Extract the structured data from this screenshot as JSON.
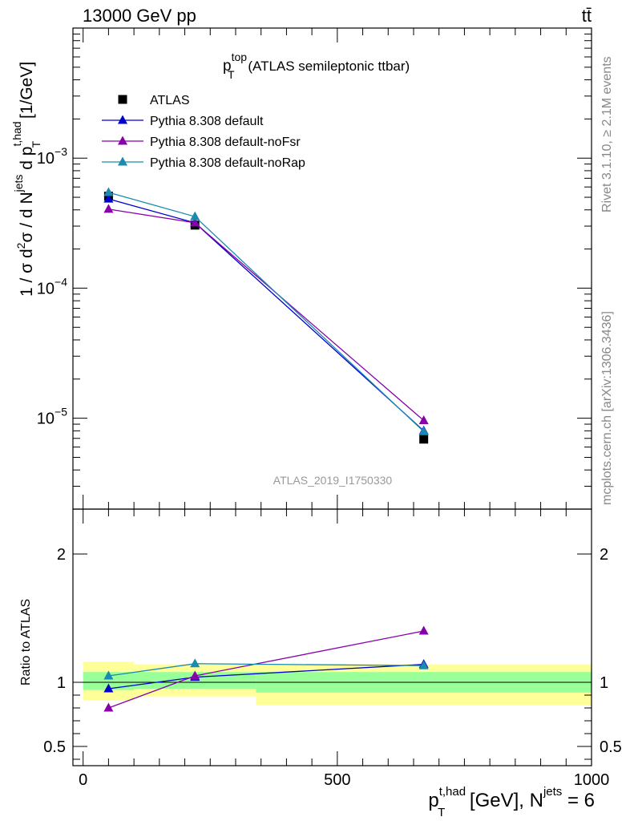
{
  "header": {
    "energy_label": "13000 GeV pp",
    "process_label": "tt̄"
  },
  "side_labels": {
    "rivet": "Rivet 3.1.10, ≥ 2.1M events",
    "mcplots": "mcplots.cern.ch [arXiv:1306.3436]"
  },
  "analysis_id": "ATLAS_2019_I1750330",
  "colors": {
    "data": "#000000",
    "default": "#0000cc",
    "noFsr": "#8800aa",
    "noRap": "#1a8ab0",
    "band_outer": "#ffff99",
    "band_inner": "#99ff99"
  },
  "chart_data": [
    {
      "type": "scatter",
      "panel": "main",
      "title_main": "p",
      "title_sup": "top",
      "title_sub": "T",
      "title_rest": " (ATLAS semileptonic ttbar)",
      "ylabel": "1 / σ d²σ / d N^jets d p_T^t,had [1/GeV]",
      "yscale": "log",
      "ylim": [
        2e-06,
        0.01
      ],
      "xlim": [
        -20,
        1000
      ],
      "y_ticks": [
        {
          "value": 1e-05,
          "base": "10",
          "exp": "−5"
        },
        {
          "value": 0.0001,
          "base": "10",
          "exp": "−4"
        },
        {
          "value": 0.001,
          "base": "10",
          "exp": "−3"
        }
      ],
      "legend_position": "top-left",
      "series": [
        {
          "name": "ATLAS",
          "key": "data",
          "marker": "square",
          "x": [
            50,
            220,
            670
          ],
          "y": [
            0.00051,
            0.000305,
            6.9e-06
          ]
        },
        {
          "name": "Pythia 8.308 default",
          "key": "default",
          "marker": "triangle",
          "x": [
            50,
            220,
            670
          ],
          "y": [
            0.000485,
            0.000318,
            8e-06
          ]
        },
        {
          "name": "Pythia 8.308 default-noFsr",
          "key": "noFsr",
          "marker": "triangle",
          "x": [
            50,
            220,
            670
          ],
          "y": [
            0.000405,
            0.000318,
            9.6e-06
          ]
        },
        {
          "name": "Pythia 8.308 default-noRap",
          "key": "noRap",
          "marker": "triangle",
          "x": [
            50,
            220,
            670
          ],
          "y": [
            0.000545,
            0.000355,
            7.9e-06
          ]
        }
      ]
    },
    {
      "type": "line",
      "panel": "ratio",
      "ylabel": "Ratio to ATLAS",
      "xlabel_main": "p",
      "xlabel_sup": "t,had",
      "xlabel_sub": "T",
      "xlabel_rest": " [GeV], N",
      "xlabel_sup2": "jets",
      "xlabel_tail": " = 6",
      "ylim": [
        0.35,
        2.35
      ],
      "xlim": [
        -20,
        1000
      ],
      "x_ticks": [
        0,
        500,
        1000
      ],
      "y_ticks": [
        0.5,
        1,
        2
      ],
      "bands": [
        {
          "x0": 0,
          "x1": 100,
          "outer": [
            0.86,
            1.16
          ],
          "inner": [
            0.94,
            1.08
          ]
        },
        {
          "x0": 100,
          "x1": 340,
          "outer": [
            0.89,
            1.14
          ],
          "inner": [
            0.95,
            1.08
          ]
        },
        {
          "x0": 340,
          "x1": 1000,
          "outer": [
            0.82,
            1.14
          ],
          "inner": [
            0.92,
            1.08
          ]
        }
      ],
      "series": [
        {
          "name": "Pythia 8.308 default",
          "key": "default",
          "x": [
            50,
            220,
            670
          ],
          "y": [
            0.95,
            1.04,
            1.14
          ]
        },
        {
          "name": "Pythia 8.308 default-noFsr",
          "key": "noFsr",
          "x": [
            50,
            220,
            670
          ],
          "y": [
            0.8,
            1.05,
            1.4
          ]
        },
        {
          "name": "Pythia 8.308 default-noRap",
          "key": "noRap",
          "x": [
            50,
            220,
            670
          ],
          "y": [
            1.05,
            1.145,
            1.13
          ]
        }
      ]
    }
  ]
}
